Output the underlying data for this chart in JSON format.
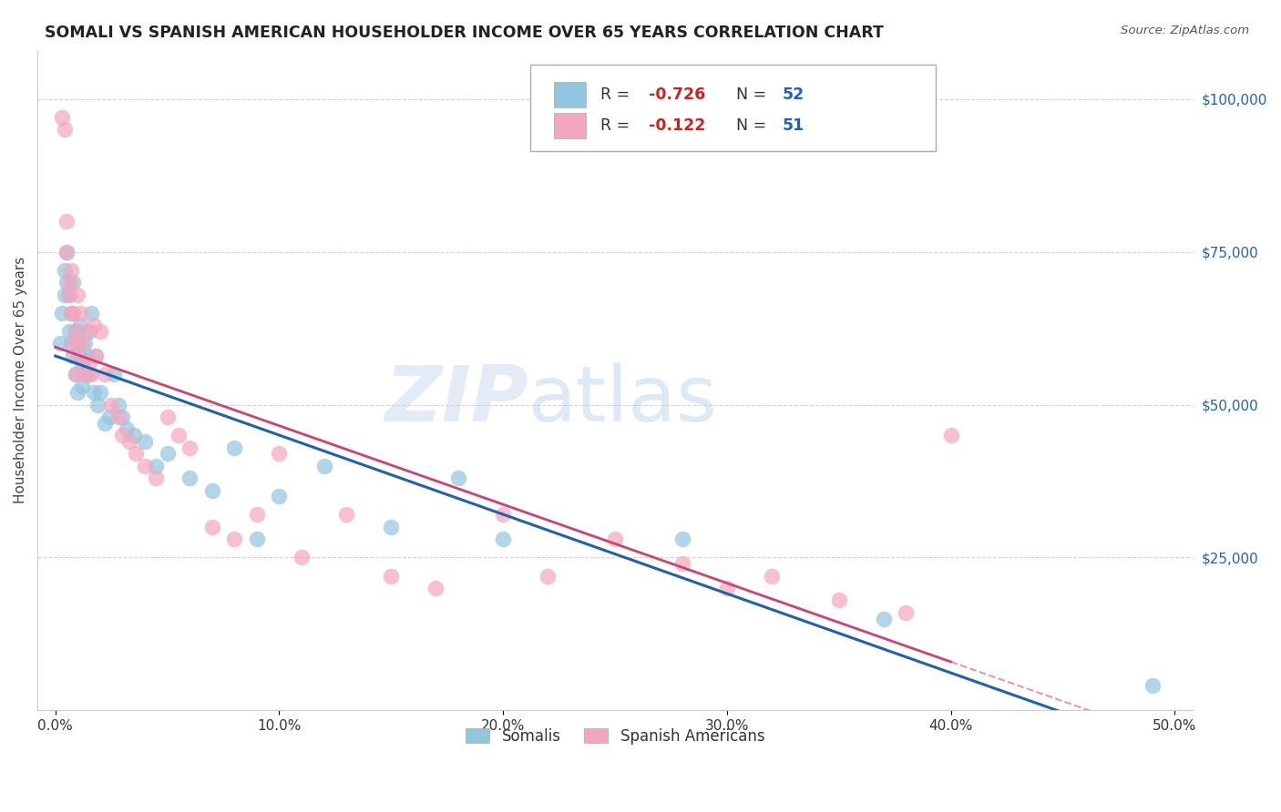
{
  "title": "SOMALI VS SPANISH AMERICAN HOUSEHOLDER INCOME OVER 65 YEARS CORRELATION CHART",
  "source": "Source: ZipAtlas.com",
  "ylabel": "Householder Income Over 65 years",
  "xlabel_ticks": [
    "0.0%",
    "10.0%",
    "20.0%",
    "30.0%",
    "40.0%",
    "50.0%"
  ],
  "xlabel_vals": [
    0.0,
    0.1,
    0.2,
    0.3,
    0.4,
    0.5
  ],
  "ytick_labels": [
    "$25,000",
    "$50,000",
    "$75,000",
    "$100,000"
  ],
  "ytick_vals": [
    25000,
    50000,
    75000,
    100000
  ],
  "ylim": [
    0,
    108000
  ],
  "xlim": [
    -0.008,
    0.508
  ],
  "blue_color": "#92c5de",
  "pink_color": "#f4a6be",
  "trendline_blue": "#2060b0",
  "trendline_pink": "#d04070",
  "somali_x": [
    0.002,
    0.003,
    0.004,
    0.004,
    0.005,
    0.005,
    0.006,
    0.006,
    0.007,
    0.007,
    0.008,
    0.008,
    0.009,
    0.009,
    0.01,
    0.01,
    0.011,
    0.011,
    0.012,
    0.012,
    0.013,
    0.013,
    0.014,
    0.015,
    0.015,
    0.016,
    0.017,
    0.018,
    0.019,
    0.02,
    0.022,
    0.024,
    0.026,
    0.028,
    0.03,
    0.032,
    0.035,
    0.04,
    0.045,
    0.05,
    0.06,
    0.07,
    0.08,
    0.09,
    0.1,
    0.12,
    0.15,
    0.18,
    0.2,
    0.28,
    0.37,
    0.49
  ],
  "somali_y": [
    60000,
    65000,
    68000,
    72000,
    75000,
    70000,
    68000,
    62000,
    65000,
    60000,
    70000,
    58000,
    62000,
    55000,
    60000,
    52000,
    58000,
    63000,
    57000,
    53000,
    55000,
    60000,
    58000,
    62000,
    55000,
    65000,
    52000,
    58000,
    50000,
    52000,
    47000,
    48000,
    55000,
    50000,
    48000,
    46000,
    45000,
    44000,
    40000,
    42000,
    38000,
    36000,
    43000,
    28000,
    35000,
    40000,
    30000,
    38000,
    28000,
    28000,
    15000,
    4000
  ],
  "spanish_x": [
    0.003,
    0.004,
    0.005,
    0.005,
    0.006,
    0.006,
    0.007,
    0.007,
    0.008,
    0.008,
    0.009,
    0.009,
    0.01,
    0.01,
    0.011,
    0.012,
    0.013,
    0.014,
    0.015,
    0.016,
    0.017,
    0.018,
    0.02,
    0.022,
    0.025,
    0.028,
    0.03,
    0.033,
    0.036,
    0.04,
    0.045,
    0.05,
    0.055,
    0.06,
    0.07,
    0.08,
    0.09,
    0.1,
    0.11,
    0.13,
    0.15,
    0.17,
    0.2,
    0.22,
    0.25,
    0.28,
    0.3,
    0.32,
    0.35,
    0.38,
    0.4
  ],
  "spanish_y": [
    97000,
    95000,
    80000,
    75000,
    70000,
    68000,
    65000,
    72000,
    60000,
    65000,
    55000,
    62000,
    68000,
    58000,
    65000,
    60000,
    55000,
    62000,
    57000,
    55000,
    63000,
    58000,
    62000,
    55000,
    50000,
    48000,
    45000,
    44000,
    42000,
    40000,
    38000,
    48000,
    45000,
    43000,
    30000,
    28000,
    32000,
    42000,
    25000,
    32000,
    22000,
    20000,
    32000,
    22000,
    28000,
    24000,
    20000,
    22000,
    18000,
    16000,
    45000
  ]
}
